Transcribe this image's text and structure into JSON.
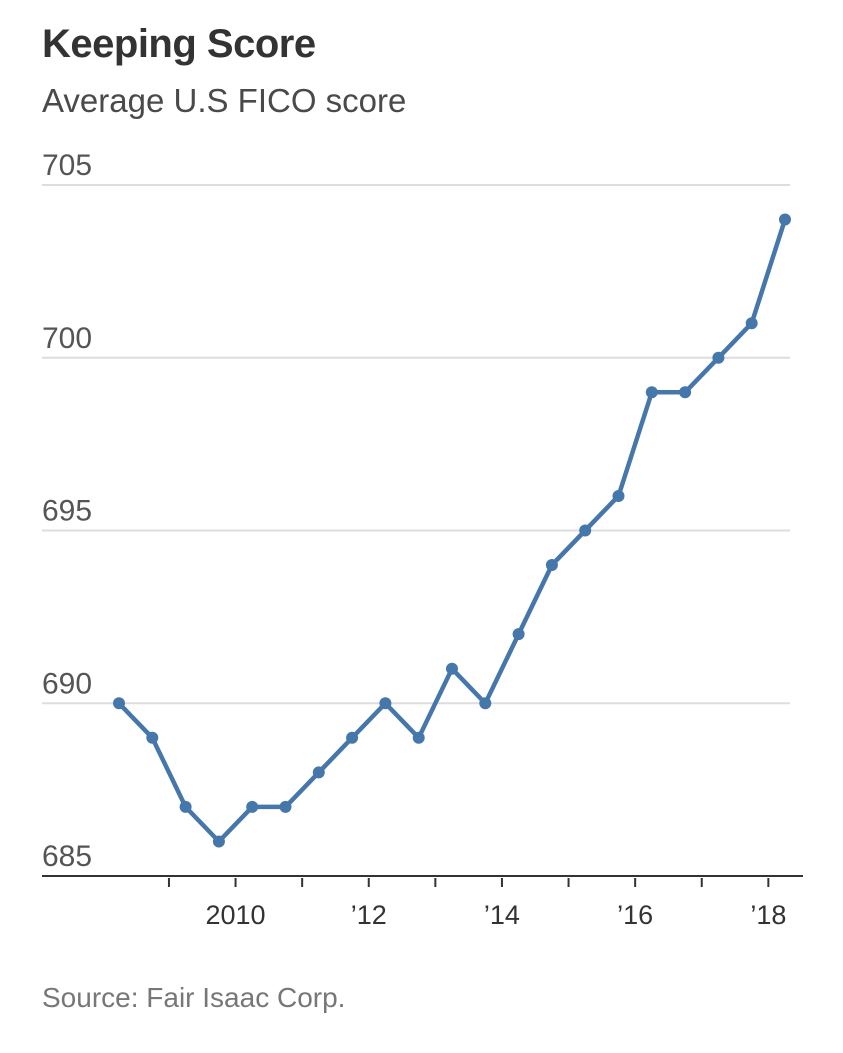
{
  "header": {
    "title": "Keeping Score",
    "subtitle": "Average U.S FICO score"
  },
  "footer": {
    "source": "Source: Fair Isaac Corp."
  },
  "colors": {
    "line": "#4677aa",
    "grid": "#dddddd",
    "axis": "#333333"
  },
  "chart_data": {
    "type": "line",
    "title": "Keeping Score",
    "subtitle": "Average U.S FICO score",
    "xlabel": "",
    "ylabel": "",
    "ylim": [
      685,
      705
    ],
    "xlim": [
      2008.0,
      2018.3
    ],
    "yticks": [
      685,
      690,
      695,
      700,
      705
    ],
    "xtick_labels": [
      {
        "x": 2010,
        "label": "2010"
      },
      {
        "x": 2012,
        "label": "’12"
      },
      {
        "x": 2014,
        "label": "’14"
      },
      {
        "x": 2016,
        "label": "’16"
      },
      {
        "x": 2018,
        "label": "’18"
      }
    ],
    "minor_ticks": [
      2009,
      2010,
      2011,
      2012,
      2013,
      2014,
      2015,
      2016,
      2017,
      2018
    ],
    "grid": true,
    "series": [
      {
        "x": [
          2008.25,
          2008.75,
          2009.25,
          2009.75,
          2010.25,
          2010.75,
          2011.25,
          2011.75,
          2012.25,
          2012.75,
          2013.25,
          2013.75,
          2014.25,
          2014.75,
          2015.25,
          2015.75,
          2016.25,
          2016.75,
          2017.25,
          2017.75,
          2018.25
        ],
        "values": [
          690,
          689,
          687,
          686,
          687,
          687,
          688,
          689,
          690,
          689,
          691,
          690,
          692,
          694,
          695,
          696,
          699,
          699,
          700,
          701,
          704
        ]
      }
    ]
  }
}
